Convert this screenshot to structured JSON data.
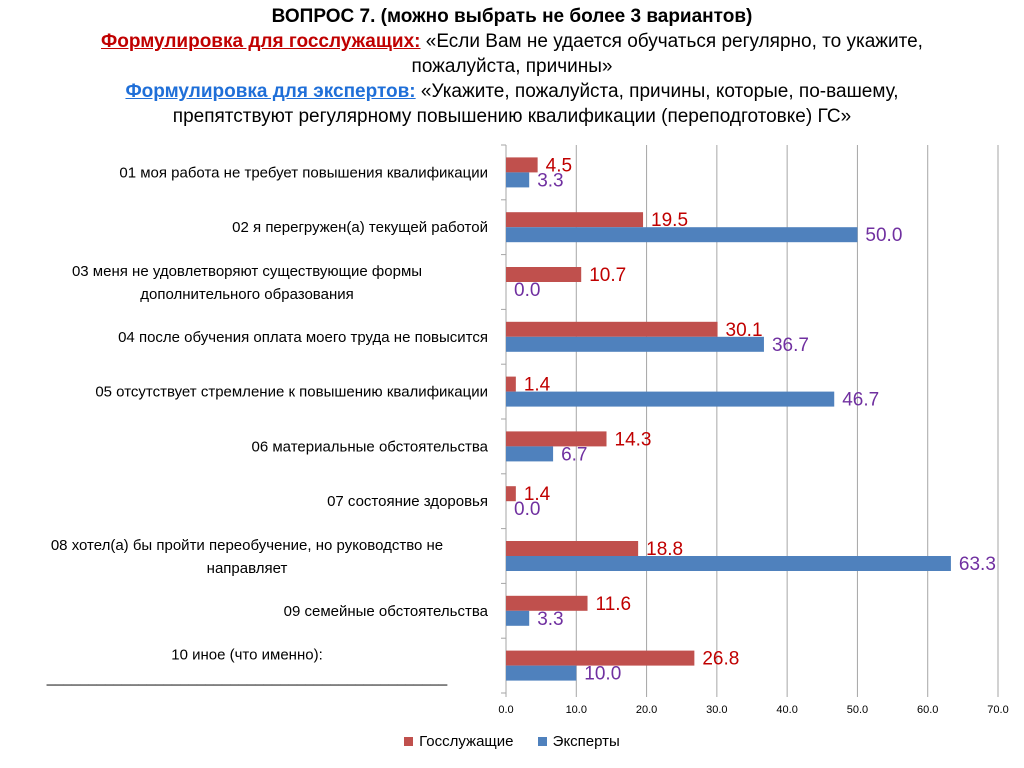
{
  "header": {
    "question": "ВОПРОС 7. (можно выбрать не более 3 вариантов)",
    "civil_label": "Формулировка для госслужащих:",
    "civil_text_1": " «Если Вам не удается обучаться регулярно, то укажите,",
    "civil_text_2": "пожалуйста, причины»",
    "expert_label": "Формулировка для экспертов:",
    "expert_text_1": " «Укажите, пожалуйста, причины, которые, по-вашему,",
    "expert_text_2": "препятствуют регулярному повышению квалификации (переподготовке)  ГС»"
  },
  "colors": {
    "civil_bar": "#c0504d",
    "expert_bar": "#4f81bd",
    "civil_text": "#c00000",
    "expert_text": "#7030a0",
    "grid": "#a6a6a6"
  },
  "chart_data": {
    "type": "bar",
    "orientation": "horizontal",
    "categories": [
      [
        "01  моя работа не требует повышения квалификации"
      ],
      [
        "02  я перегружен(а) текущей работой"
      ],
      [
        "03  меня не удовлетворяют существующие формы",
        "дополнительного образования"
      ],
      [
        "04  после обучения оплата моего труда не повысится"
      ],
      [
        "05  отсутствует стремление к повышению квалификации"
      ],
      [
        "06  материальные обстоятельства"
      ],
      [
        "07  состояние здоровья"
      ],
      [
        "08  хотел(а) бы пройти переобучение, но руководство не",
        "направляет"
      ],
      [
        "09  семейные обстоятельства"
      ],
      [
        "10  иное (что именно):",
        "________________________________________________"
      ]
    ],
    "series": [
      {
        "name": "Госслужащие",
        "values": [
          4.5,
          19.5,
          10.7,
          30.1,
          1.4,
          14.3,
          1.4,
          18.8,
          11.6,
          26.8
        ],
        "labels": [
          "4.5",
          "19.5",
          "10.7",
          "30.1",
          "1.4",
          "14.3",
          "1.4",
          "18.8",
          "11.6",
          "26.8"
        ]
      },
      {
        "name": "Эксперты",
        "values": [
          3.3,
          50.0,
          0.0,
          36.7,
          46.7,
          6.7,
          0.0,
          63.3,
          3.3,
          10.0
        ],
        "labels": [
          "3.3",
          "50.0",
          "0.0",
          "36.7",
          "46.7",
          "6.7",
          "0.0",
          "63.3",
          "3.3",
          "10.0"
        ]
      }
    ],
    "xlim": [
      0,
      70
    ],
    "ticks": [
      "0.0",
      "10.0",
      "20.0",
      "30.0",
      "40.0",
      "50.0",
      "60.0",
      "70.0"
    ],
    "grid": true,
    "legend_position": "bottom"
  }
}
